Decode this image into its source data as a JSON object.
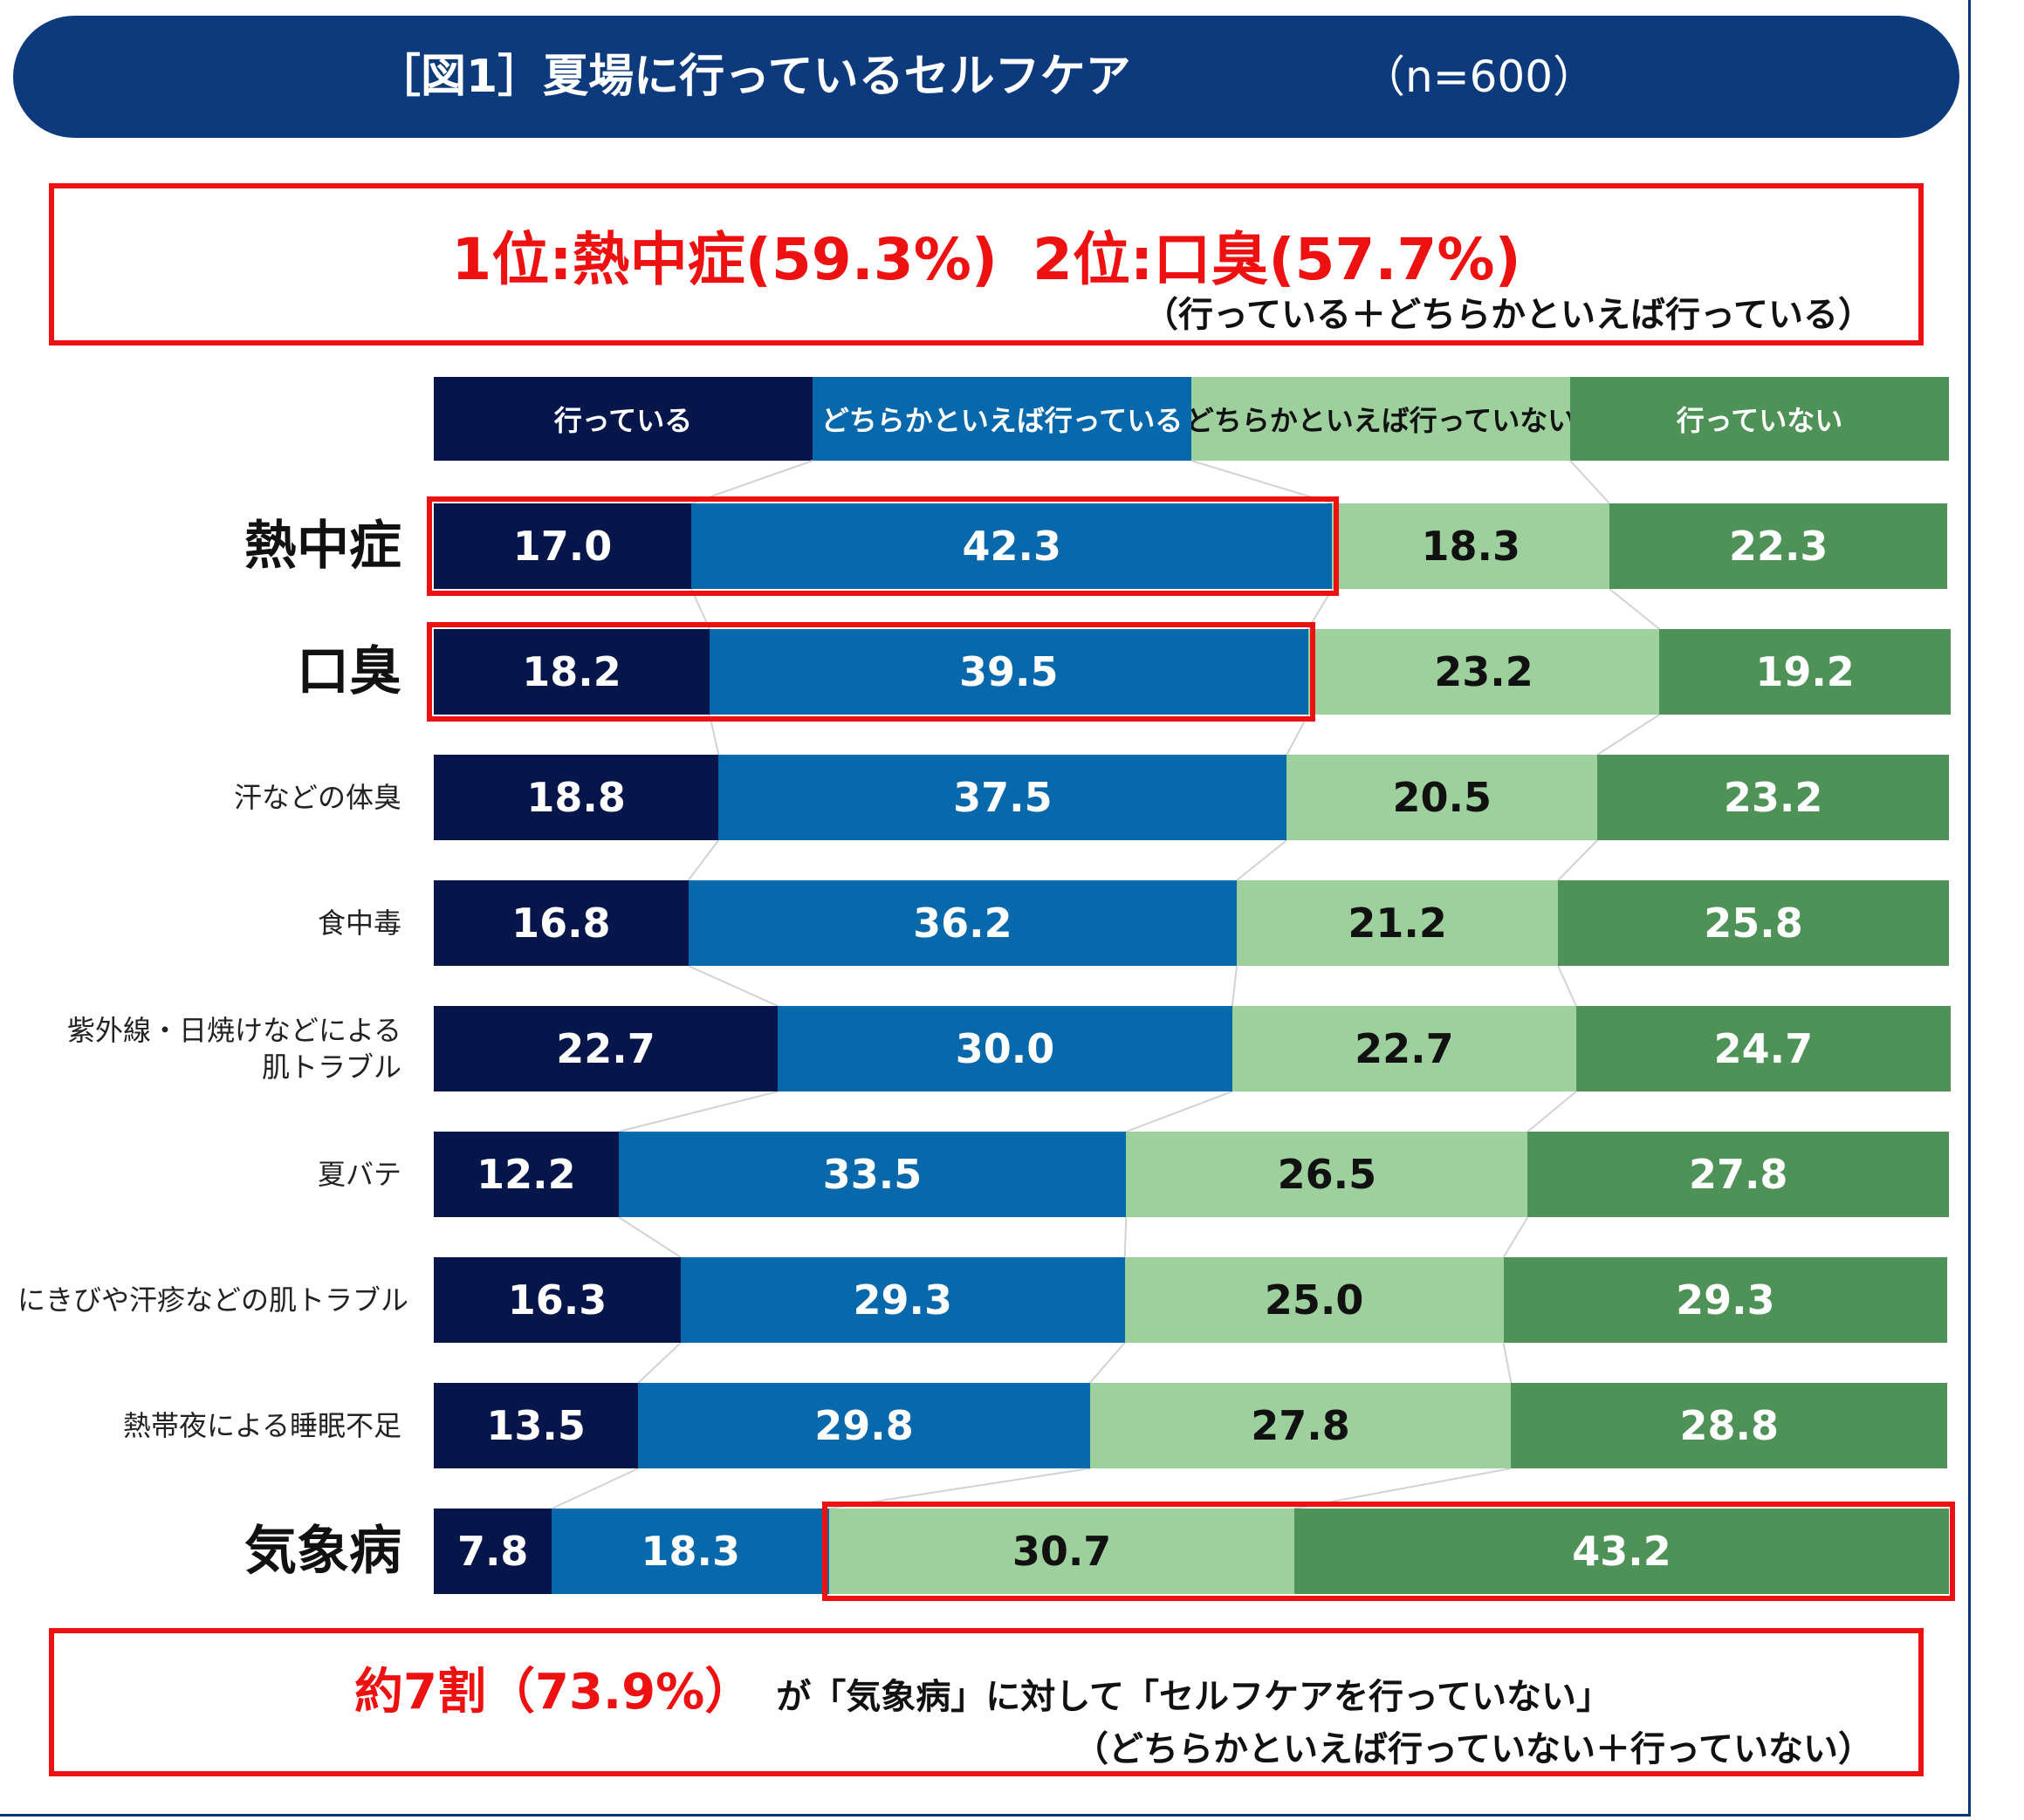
{
  "header": {
    "title": "［図1］夏場に行っているセルフケア",
    "n_label": "（n=600）"
  },
  "top_summary": {
    "rank1": "1位:熱中症(59.3%)",
    "rank2": "2位:口臭(57.7%)",
    "note": "（行っている＋どちらかといえば行っている）"
  },
  "bottom_summary": {
    "highlight": "約7割（73.9%）",
    "text": "が「気象病」に対して「セルフケアを行っていない」",
    "note": "（どちらかといえば行っていない＋行っていない）"
  },
  "colors": {
    "c1": "#06164a",
    "c2": "#0868ac",
    "c3": "#9ed09e",
    "c4": "#4e9257",
    "highlight": "#ee1111"
  },
  "chart_data": {
    "type": "bar",
    "orientation": "horizontal",
    "stacked": true,
    "unit": "%",
    "legend": [
      "行っている",
      "どちらかといえば行っている",
      "どちらかといえば行っていない",
      "行っていない"
    ],
    "categories": [
      "熱中症",
      "口臭",
      "汗などの体臭",
      "食中毒",
      "紫外線・日焼けなどによる肌トラブル",
      "夏バテ",
      "にきびや汗疹などの肌トラブル",
      "熱帯夜による睡眠不足",
      "気象病"
    ],
    "category_display": [
      [
        "熱中症"
      ],
      [
        "口臭"
      ],
      [
        "汗などの体臭"
      ],
      [
        "食中毒"
      ],
      [
        "紫外線・日焼けなどによる",
        "肌トラブル"
      ],
      [
        "夏バテ"
      ],
      [
        "にきびや汗疹などの肌トラブル"
      ],
      [
        "熱帯夜による睡眠不足"
      ],
      [
        "気象病"
      ]
    ],
    "emphasized_categories": [
      "熱中症",
      "口臭",
      "気象病"
    ],
    "series": [
      {
        "name": "行っている",
        "values": [
          17.0,
          18.2,
          18.8,
          16.8,
          22.7,
          12.2,
          16.3,
          13.5,
          7.8
        ]
      },
      {
        "name": "どちらかといえば行っている",
        "values": [
          42.3,
          39.5,
          37.5,
          36.2,
          30.0,
          33.5,
          29.3,
          29.8,
          18.3
        ]
      },
      {
        "name": "どちらかといえば行っていない",
        "values": [
          18.3,
          23.2,
          20.5,
          21.2,
          22.7,
          26.5,
          25.0,
          27.8,
          30.7
        ]
      },
      {
        "name": "行っていない",
        "values": [
          22.3,
          19.2,
          23.2,
          25.8,
          24.7,
          27.8,
          29.3,
          28.8,
          43.2
        ]
      }
    ],
    "highlights": [
      {
        "category": "熱中症",
        "series": [
          0,
          1
        ]
      },
      {
        "category": "口臭",
        "series": [
          0,
          1
        ]
      },
      {
        "category": "気象病",
        "series": [
          2,
          3
        ]
      }
    ]
  }
}
